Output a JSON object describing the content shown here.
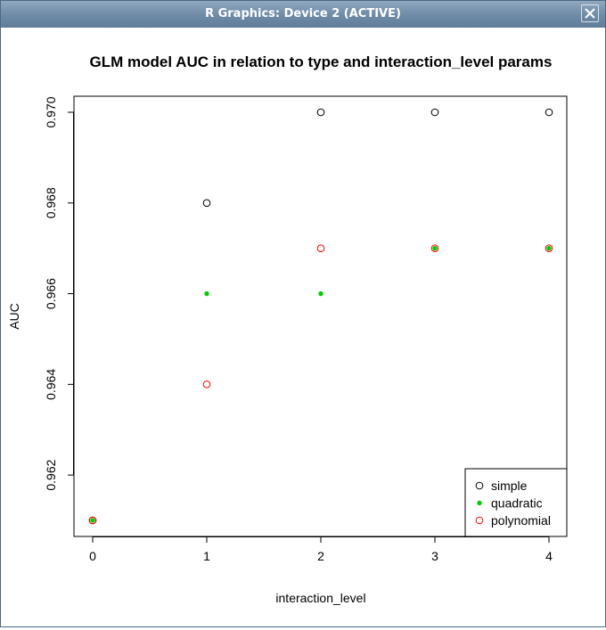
{
  "window": {
    "title": "R Graphics: Device 2 (ACTIVE)",
    "close_icon": "close-icon"
  },
  "chart_data": {
    "type": "scatter",
    "title": "GLM model AUC in relation to type and interaction_level params",
    "xlabel": "interaction_level",
    "ylabel": "AUC",
    "x": [
      0,
      1,
      2,
      3,
      4
    ],
    "xlim": [
      0,
      4
    ],
    "ylim": [
      0.961,
      0.97
    ],
    "xticks": [
      "0",
      "1",
      "2",
      "3",
      "4"
    ],
    "yticks": [
      "0.962",
      "0.964",
      "0.966",
      "0.968",
      "0.970"
    ],
    "grid": false,
    "legend_position": "bottom-right",
    "series": [
      {
        "name": "simple",
        "marker": "open-circle",
        "color": "#000000",
        "values": [
          0.961,
          0.968,
          0.97,
          0.97,
          0.97
        ]
      },
      {
        "name": "quadratic",
        "marker": "filled-dot",
        "color": "#00cd00",
        "values": [
          0.961,
          0.966,
          0.966,
          0.967,
          0.967
        ]
      },
      {
        "name": "polynomial",
        "marker": "open-circle",
        "color": "#ff0000",
        "values": [
          0.961,
          0.964,
          0.967,
          0.967,
          0.967
        ]
      }
    ]
  }
}
